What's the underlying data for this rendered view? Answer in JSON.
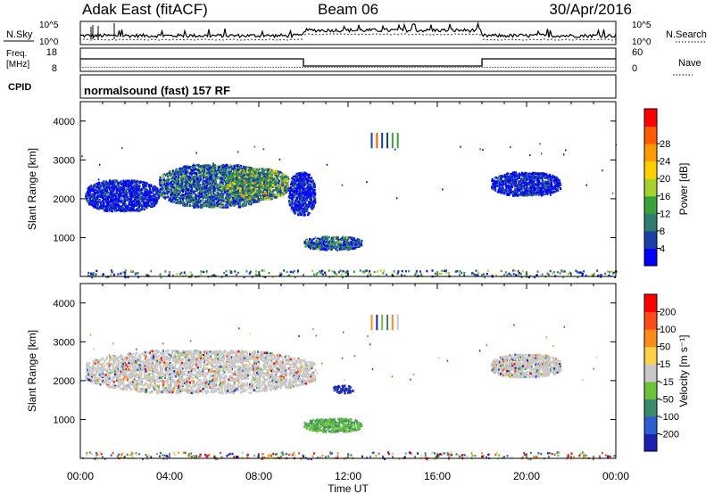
{
  "header": {
    "station": "Adak East (fitACF)",
    "beam": "Beam 06",
    "date": "30/Apr/2016"
  },
  "noise_panel": {
    "left_label": "N.Sky",
    "right_label": "N.Search",
    "tick_top": "10^5",
    "tick_bottom": "10^0"
  },
  "freq_panel": {
    "left_label_line1": "Freq.",
    "left_label_line2": "[MHz]",
    "left_ticks": [
      "18",
      "8"
    ],
    "right_label": "Nave",
    "right_ticks": [
      "60",
      "0"
    ],
    "cpid_label": "CPID",
    "cpid_text": "normalsound (fast) 157 RF"
  },
  "time_axis": {
    "ticks": [
      "00:00",
      "04:00",
      "08:00",
      "12:00",
      "16:00",
      "20:00",
      "00:00"
    ],
    "label": "Time UT"
  },
  "chart_data": [
    {
      "type": "heatmap",
      "panel": "power",
      "ylabel": "Slant Range [km]",
      "yticks": [
        "1000",
        "2000",
        "3000",
        "4000"
      ],
      "ylim": [
        0,
        4500
      ],
      "xlim_hours": [
        0,
        24
      ],
      "colorbar": {
        "label": "Power [dB]",
        "ticks": [
          "4",
          "8",
          "12",
          "16",
          "20",
          "24",
          "28"
        ],
        "colors": [
          "#0000ff",
          "#1a3fa8",
          "#2e7d6e",
          "#3aa03a",
          "#a6d12e",
          "#ffd000",
          "#ff9a00",
          "#ff5a00",
          "#ff0000"
        ]
      },
      "regions": [
        {
          "t": [
            0.2,
            3.5
          ],
          "r": [
            1700,
            2500
          ],
          "level": "low"
        },
        {
          "t": [
            3.5,
            8.5
          ],
          "r": [
            1800,
            2900
          ],
          "level": "mid"
        },
        {
          "t": [
            6.5,
            9.3
          ],
          "r": [
            2000,
            2800
          ],
          "level": "high"
        },
        {
          "t": [
            9.3,
            10.5
          ],
          "r": [
            1600,
            2700
          ],
          "level": "low"
        },
        {
          "t": [
            10.0,
            12.6
          ],
          "r": [
            700,
            1050
          ],
          "level": "mid"
        },
        {
          "t": [
            12.9,
            14.3
          ],
          "r": [
            3300,
            3700
          ],
          "level": "mixed"
        },
        {
          "t": [
            18.4,
            21.5
          ],
          "r": [
            2100,
            2700
          ],
          "level": "low"
        },
        {
          "t": [
            0.0,
            24.0
          ],
          "r": [
            0,
            180
          ],
          "level": "ground"
        }
      ]
    },
    {
      "type": "heatmap",
      "panel": "velocity",
      "ylabel": "Slant Range [km]",
      "yticks": [
        "1000",
        "2000",
        "3000",
        "4000"
      ],
      "ylim": [
        0,
        4500
      ],
      "xlim_hours": [
        0,
        24
      ],
      "colorbar": {
        "label": "Velocity [m s⁻¹]",
        "ticks": [
          "200",
          "100",
          "50",
          "15",
          "-15",
          "-50",
          "-100",
          "-200"
        ],
        "colors": [
          "#2020b0",
          "#2e5fd0",
          "#3a8a6e",
          "#6cc33a",
          "#c8c8c8",
          "#ffd24a",
          "#ff8c1a",
          "#ff4a1a",
          "#ff0000"
        ]
      },
      "regions": [
        {
          "t": [
            0.2,
            10.5
          ],
          "r": [
            1700,
            2800
          ],
          "level": "grey"
        },
        {
          "t": [
            10.0,
            12.6
          ],
          "r": [
            700,
            1050
          ],
          "level": "green"
        },
        {
          "t": [
            11.3,
            12.2
          ],
          "r": [
            1700,
            1900
          ],
          "level": "blue"
        },
        {
          "t": [
            12.9,
            14.3
          ],
          "r": [
            3300,
            3700
          ],
          "level": "mixed"
        },
        {
          "t": [
            18.4,
            21.5
          ],
          "r": [
            2100,
            2700
          ],
          "level": "grey"
        },
        {
          "t": [
            0.0,
            24.0
          ],
          "r": [
            0,
            180
          ],
          "level": "ground"
        }
      ]
    }
  ]
}
